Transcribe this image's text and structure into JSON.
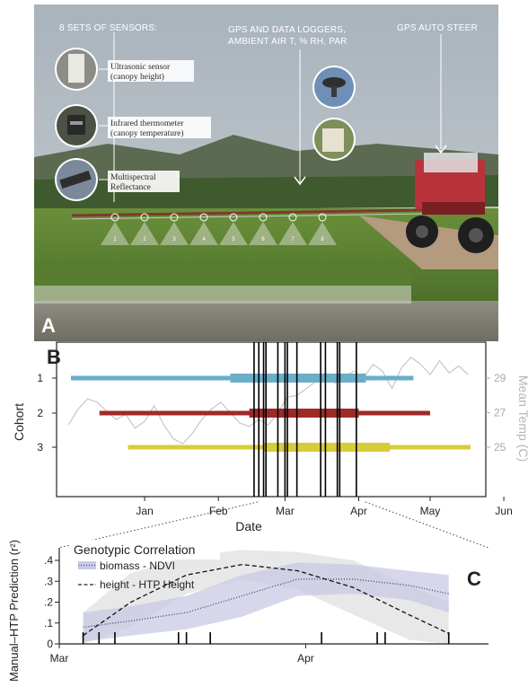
{
  "panel_a": {
    "label": "A",
    "sensors_header": "8 SETS OF SENSORS:",
    "sensor_1": "Ultrasonic sensor",
    "sensor_1_detail": "(canopy height)",
    "sensor_2": "Infrared thermometer",
    "sensor_2_detail": "(canopy temperature)",
    "sensor_3": "Multispectral",
    "sensor_3_detail": "Reflectance",
    "gps_header_line1": "GPS AND DATA LOGGERS,",
    "gps_header_line2": "AMBIENT AIR T, % RH, PAR",
    "autosteer_header": "GPS AUTO STEER",
    "sensor_numbers": [
      "1",
      "2",
      "3",
      "4",
      "5",
      "6",
      "7",
      "8"
    ]
  },
  "chart_data": [
    {
      "type": "line",
      "panel": "B",
      "xlabel": "Date",
      "ylabel": "Cohort",
      "ylabel_right": "Mean Temp (C)",
      "x_ticks": [
        "Jan",
        "Feb",
        "Mar",
        "Apr",
        "May",
        "Jun"
      ],
      "y_ticks": [
        "1",
        "2",
        "3"
      ],
      "y2_ticks": [
        "29",
        "27",
        "25"
      ],
      "cohorts": [
        {
          "cohort": "1",
          "color": "#6aaec8",
          "season_start": "Dec 15",
          "season_end": "May 08",
          "measure_start": "Feb 20",
          "measure_end": "Apr 18"
        },
        {
          "cohort": "2",
          "color": "#9e2a28",
          "season_start": "Dec 27",
          "season_end": "May 15",
          "measure_start": "Feb 28",
          "measure_end": "Apr 15"
        },
        {
          "cohort": "3",
          "color": "#d8cc3a",
          "season_start": "Jan 08",
          "season_end": "Jun 01",
          "measure_start": "Mar 06",
          "measure_end": "Apr 28"
        }
      ],
      "measurement_dates": [
        "Mar 02",
        "Mar 04",
        "Mar 06",
        "Mar 07",
        "Mar 12",
        "Mar 15",
        "Mar 16",
        "Mar 20",
        "Mar 30",
        "Apr 01",
        "Apr 06",
        "Apr 07",
        "Apr 14"
      ],
      "temperature_series": {
        "name": "Mean Temp (C)",
        "color": "#c2c2c2",
        "points": [
          [
            "Dec 14",
            26.3
          ],
          [
            "Dec 18",
            27.2
          ],
          [
            "Dec 22",
            27.8
          ],
          [
            "Dec 26",
            27.6
          ],
          [
            "Dec 30",
            27.1
          ],
          [
            "Jan 03",
            26.6
          ],
          [
            "Jan 07",
            26.9
          ],
          [
            "Jan 11",
            26.1
          ],
          [
            "Jan 15",
            26.5
          ],
          [
            "Jan 19",
            27.4
          ],
          [
            "Jan 23",
            26.3
          ],
          [
            "Jan 27",
            25.5
          ],
          [
            "Jan 31",
            25.2
          ],
          [
            "Feb 04",
            25.8
          ],
          [
            "Feb 08",
            26.6
          ],
          [
            "Feb 12",
            27.2
          ],
          [
            "Feb 16",
            27.6
          ],
          [
            "Feb 20",
            27.0
          ],
          [
            "Feb 24",
            26.4
          ],
          [
            "Feb 28",
            26.2
          ],
          [
            "Mar 04",
            26.6
          ],
          [
            "Mar 08",
            26.3
          ],
          [
            "Mar 12",
            27.0
          ],
          [
            "Mar 16",
            27.9
          ],
          [
            "Mar 20",
            28.0
          ],
          [
            "Mar 24",
            28.4
          ],
          [
            "Mar 28",
            28.8
          ],
          [
            "Apr 01",
            29.3
          ],
          [
            "Apr 05",
            28.7
          ],
          [
            "Apr 09",
            29.1
          ],
          [
            "Apr 13",
            29.4
          ],
          [
            "Apr 17",
            29.0
          ],
          [
            "Apr 21",
            29.8
          ],
          [
            "Apr 25",
            29.4
          ],
          [
            "Apr 29",
            28.4
          ],
          [
            "May 03",
            29.6
          ],
          [
            "May 07",
            30.2
          ],
          [
            "May 11",
            29.8
          ],
          [
            "May 15",
            29.2
          ],
          [
            "May 19",
            30.0
          ],
          [
            "May 23",
            29.3
          ],
          [
            "May 27",
            29.7
          ],
          [
            "May 31",
            29.2
          ]
        ]
      }
    },
    {
      "type": "line",
      "panel": "C",
      "title": "Genotypic Correlation",
      "ylabel": "Manual–HTP Prediction (r²)",
      "x_ticks": [
        "Mar",
        "Apr"
      ],
      "y_ticks": [
        ".4",
        ".3",
        ".2",
        ".1",
        "0"
      ],
      "ylim": [
        0,
        0.45
      ],
      "xlim": [
        "Mar 01",
        "Apr 24"
      ],
      "measurement_dates": [
        "Mar 04",
        "Mar 06",
        "Mar 08",
        "Mar 16",
        "Mar 17",
        "Mar 20",
        "Apr 03",
        "Apr 10",
        "Apr 11",
        "Apr 19"
      ],
      "series": [
        {
          "name": "biomass - NDVI",
          "style": "dotted",
          "band_color": "#c9c9e6",
          "x": [
            "Mar 04",
            "Mar 10",
            "Mar 17",
            "Mar 24",
            "Mar 31",
            "Apr 07",
            "Apr 14",
            "Apr 19"
          ],
          "y": [
            0.08,
            0.11,
            0.15,
            0.23,
            0.31,
            0.31,
            0.28,
            0.24
          ],
          "upper": [
            0.15,
            0.18,
            0.23,
            0.33,
            0.39,
            0.38,
            0.35,
            0.33
          ],
          "lower": [
            0.01,
            0.04,
            0.07,
            0.13,
            0.23,
            0.24,
            0.21,
            0.15
          ]
        },
        {
          "name": "height - HTP Height",
          "style": "dashed",
          "band_color": "#e6e6e6",
          "x": [
            "Mar 04",
            "Mar 10",
            "Mar 17",
            "Mar 24",
            "Mar 31",
            "Apr 07",
            "Apr 14",
            "Apr 19"
          ],
          "y": [
            0.04,
            0.2,
            0.33,
            0.38,
            0.35,
            0.27,
            0.14,
            0.05
          ],
          "upper": [
            0.15,
            0.34,
            0.42,
            0.45,
            0.44,
            0.4,
            0.28,
            0.2
          ],
          "lower": [
            0.0,
            0.08,
            0.24,
            0.31,
            0.26,
            0.14,
            0.02,
            0.0
          ]
        }
      ]
    }
  ],
  "labels": {
    "panel_b": "B",
    "panel_c": "C"
  }
}
